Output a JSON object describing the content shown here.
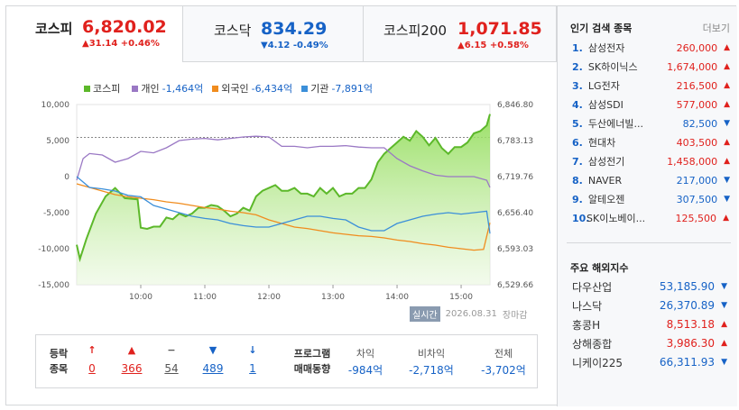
{
  "tabs": [
    {
      "name": "코스피",
      "value": "6,820.02",
      "change": "▲31.14 +0.46%",
      "dir": "up",
      "active": true
    },
    {
      "name": "코스닥",
      "value": "834.29",
      "change": "▼4.12 -0.49%",
      "dir": "down",
      "active": false
    },
    {
      "name": "코스피200",
      "value": "1,071.85",
      "change": "▲6.15 +0.58%",
      "dir": "up",
      "active": false
    }
  ],
  "legend": [
    {
      "label": "코스피",
      "value": "",
      "color": "#5cb82a"
    },
    {
      "label": "개인",
      "value": "-1,464억",
      "color": "#9a78c4"
    },
    {
      "label": "외국인",
      "value": "-6,434억",
      "color": "#f08c1e"
    },
    {
      "label": "기관",
      "value": "-7,891억",
      "color": "#3b8fd9"
    }
  ],
  "chart_data": {
    "type": "line",
    "x_ticks": [
      "10:00",
      "11:00",
      "12:00",
      "13:00",
      "14:00",
      "15:00"
    ],
    "y_left_ticks": [
      "10,000",
      "5,000",
      "0",
      "-5,000",
      "-10,000",
      "-15,000"
    ],
    "y_left_range": [
      -15000,
      10000
    ],
    "y_right_ticks": [
      "6,846.80",
      "6,783.13",
      "6,719.76",
      "6,656.40",
      "6,593.03",
      "6,529.66"
    ],
    "y_right_range": [
      6529.66,
      6846.8
    ],
    "reference_line_right": 6789,
    "series": [
      {
        "name": "코스피",
        "axis": "right",
        "color": "#5cb82a",
        "fill": true,
        "x": [
          9.0,
          9.05,
          9.15,
          9.3,
          9.45,
          9.6,
          9.75,
          9.95,
          10.0,
          10.1,
          10.2,
          10.3,
          10.4,
          10.5,
          10.6,
          10.7,
          10.8,
          10.9,
          11.0,
          11.1,
          11.2,
          11.3,
          11.4,
          11.5,
          11.6,
          11.7,
          11.8,
          11.9,
          12.0,
          12.1,
          12.2,
          12.3,
          12.4,
          12.5,
          12.6,
          12.7,
          12.8,
          12.9,
          13.0,
          13.1,
          13.2,
          13.3,
          13.4,
          13.5,
          13.6,
          13.7,
          13.8,
          13.9,
          14.0,
          14.1,
          14.2,
          14.3,
          14.4,
          14.5,
          14.6,
          14.7,
          14.8,
          14.9,
          15.0,
          15.1,
          15.2,
          15.3,
          15.4,
          15.45
        ],
        "y": [
          6600,
          6575,
          6610,
          6655,
          6685,
          6700,
          6682,
          6680,
          6630,
          6628,
          6632,
          6632,
          6648,
          6645,
          6655,
          6650,
          6655,
          6665,
          6665,
          6670,
          6668,
          6660,
          6650,
          6655,
          6665,
          6660,
          6685,
          6695,
          6700,
          6705,
          6695,
          6695,
          6700,
          6690,
          6690,
          6685,
          6700,
          6690,
          6700,
          6685,
          6690,
          6690,
          6700,
          6700,
          6715,
          6745,
          6760,
          6770,
          6780,
          6790,
          6783,
          6800,
          6790,
          6775,
          6788,
          6770,
          6760,
          6772,
          6772,
          6780,
          6796,
          6800,
          6810,
          6830
        ]
      },
      {
        "name": "개인",
        "axis": "left",
        "color": "#9a78c4",
        "fill": false,
        "x": [
          9.0,
          9.1,
          9.2,
          9.4,
          9.6,
          9.8,
          10.0,
          10.2,
          10.4,
          10.6,
          10.8,
          11.0,
          11.2,
          11.4,
          11.6,
          11.8,
          12.0,
          12.2,
          12.4,
          12.6,
          12.8,
          13.0,
          13.2,
          13.4,
          13.6,
          13.8,
          14.0,
          14.2,
          14.4,
          14.6,
          14.8,
          15.0,
          15.2,
          15.4,
          15.45
        ],
        "y": [
          -500,
          2500,
          3200,
          3000,
          2000,
          2500,
          3500,
          3300,
          4000,
          5000,
          5200,
          5300,
          5100,
          5300,
          5500,
          5600,
          5500,
          4200,
          4200,
          4000,
          4200,
          4200,
          4300,
          4100,
          4000,
          4000,
          2500,
          1500,
          800,
          200,
          0,
          0,
          0,
          -500,
          -1500
        ]
      },
      {
        "name": "외국인",
        "axis": "left",
        "color": "#f08c1e",
        "fill": false,
        "x": [
          9.0,
          9.2,
          9.4,
          9.6,
          9.8,
          10.0,
          10.2,
          10.4,
          10.6,
          10.8,
          11.0,
          11.2,
          11.4,
          11.6,
          11.8,
          12.0,
          12.2,
          12.4,
          12.6,
          12.8,
          13.0,
          13.2,
          13.4,
          13.6,
          13.8,
          14.0,
          14.2,
          14.4,
          14.6,
          14.8,
          15.0,
          15.2,
          15.35,
          15.45
        ],
        "y": [
          -1000,
          -1500,
          -2000,
          -2500,
          -2800,
          -3000,
          -3200,
          -3500,
          -3700,
          -4000,
          -4300,
          -4500,
          -4800,
          -5000,
          -5300,
          -6000,
          -6500,
          -7000,
          -7200,
          -7500,
          -7800,
          -8000,
          -8200,
          -8300,
          -8500,
          -8800,
          -9000,
          -9300,
          -9500,
          -9800,
          -10000,
          -10200,
          -10100,
          -6400
        ]
      },
      {
        "name": "기관",
        "axis": "left",
        "color": "#3b8fd9",
        "fill": false,
        "x": [
          9.0,
          9.2,
          9.4,
          9.6,
          9.8,
          10.0,
          10.2,
          10.4,
          10.6,
          10.8,
          11.0,
          11.2,
          11.4,
          11.6,
          11.8,
          12.0,
          12.2,
          12.4,
          12.6,
          12.8,
          13.0,
          13.2,
          13.4,
          13.6,
          13.8,
          14.0,
          14.2,
          14.4,
          14.6,
          14.8,
          15.0,
          15.2,
          15.4,
          15.45
        ],
        "y": [
          0,
          -1500,
          -1700,
          -2000,
          -2600,
          -2800,
          -4000,
          -4500,
          -5000,
          -5500,
          -5800,
          -6000,
          -6500,
          -6800,
          -7000,
          -7000,
          -6500,
          -6000,
          -5500,
          -5500,
          -5800,
          -6000,
          -7000,
          -7500,
          -7500,
          -6500,
          -6000,
          -5500,
          -5200,
          -5000,
          -5200,
          -5000,
          -4800,
          -7900
        ]
      }
    ]
  },
  "timestamp": {
    "badge": "실시간",
    "date": "2026.08.31",
    "status": "장마감"
  },
  "breadth": {
    "label_line1": "등락",
    "label_line2": "종목",
    "items": [
      {
        "icon": "↑",
        "value": "0",
        "dir": "up",
        "icon_name": "upper-limit-icon"
      },
      {
        "icon": "▲",
        "value": "366",
        "dir": "up",
        "icon_name": "rise-icon"
      },
      {
        "icon": "−",
        "value": "54",
        "dir": "flat",
        "icon_name": "unchanged-icon"
      },
      {
        "icon": "▼",
        "value": "489",
        "dir": "down",
        "icon_name": "fall-icon"
      },
      {
        "icon": "↓",
        "value": "1",
        "dir": "down",
        "icon_name": "lower-limit-icon"
      }
    ]
  },
  "program": {
    "label_line1": "프로그램",
    "label_line2": "매매동향",
    "items": [
      {
        "label": "차익",
        "value": "-984억"
      },
      {
        "label": "비차익",
        "value": "-2,718억"
      },
      {
        "label": "전체",
        "value": "-3,702억"
      }
    ]
  },
  "popular": {
    "title": "인기 검색 종목",
    "more": "더보기",
    "items": [
      {
        "rank": "1.",
        "name": "삼성전자",
        "price": "260,000",
        "dir": "up"
      },
      {
        "rank": "2.",
        "name": "SK하이닉스",
        "price": "1,674,000",
        "dir": "up"
      },
      {
        "rank": "3.",
        "name": "LG전자",
        "price": "216,500",
        "dir": "up"
      },
      {
        "rank": "4.",
        "name": "삼성SDI",
        "price": "577,000",
        "dir": "up"
      },
      {
        "rank": "5.",
        "name": "두산에너빌...",
        "price": "82,500",
        "dir": "down"
      },
      {
        "rank": "6.",
        "name": "현대차",
        "price": "403,500",
        "dir": "up"
      },
      {
        "rank": "7.",
        "name": "삼성전기",
        "price": "1,458,000",
        "dir": "up"
      },
      {
        "rank": "8.",
        "name": "NAVER",
        "price": "217,000",
        "dir": "down"
      },
      {
        "rank": "9.",
        "name": "알테오젠",
        "price": "307,500",
        "dir": "down"
      },
      {
        "rank": "10.",
        "name": "SK이노베이...",
        "price": "125,500",
        "dir": "up"
      }
    ]
  },
  "overseas": {
    "title": "주요 해외지수",
    "items": [
      {
        "name": "다우산업",
        "price": "53,185.90",
        "dir": "down"
      },
      {
        "name": "나스닥",
        "price": "26,370.89",
        "dir": "down"
      },
      {
        "name": "홍콩H",
        "price": "8,513.18",
        "dir": "up"
      },
      {
        "name": "상해종합",
        "price": "3,986.30",
        "dir": "up"
      },
      {
        "name": "니케이225",
        "price": "66,311.93",
        "dir": "down"
      }
    ]
  },
  "colors": {
    "up": "#e0211d",
    "down": "#1662c6",
    "flat": "#555555"
  }
}
